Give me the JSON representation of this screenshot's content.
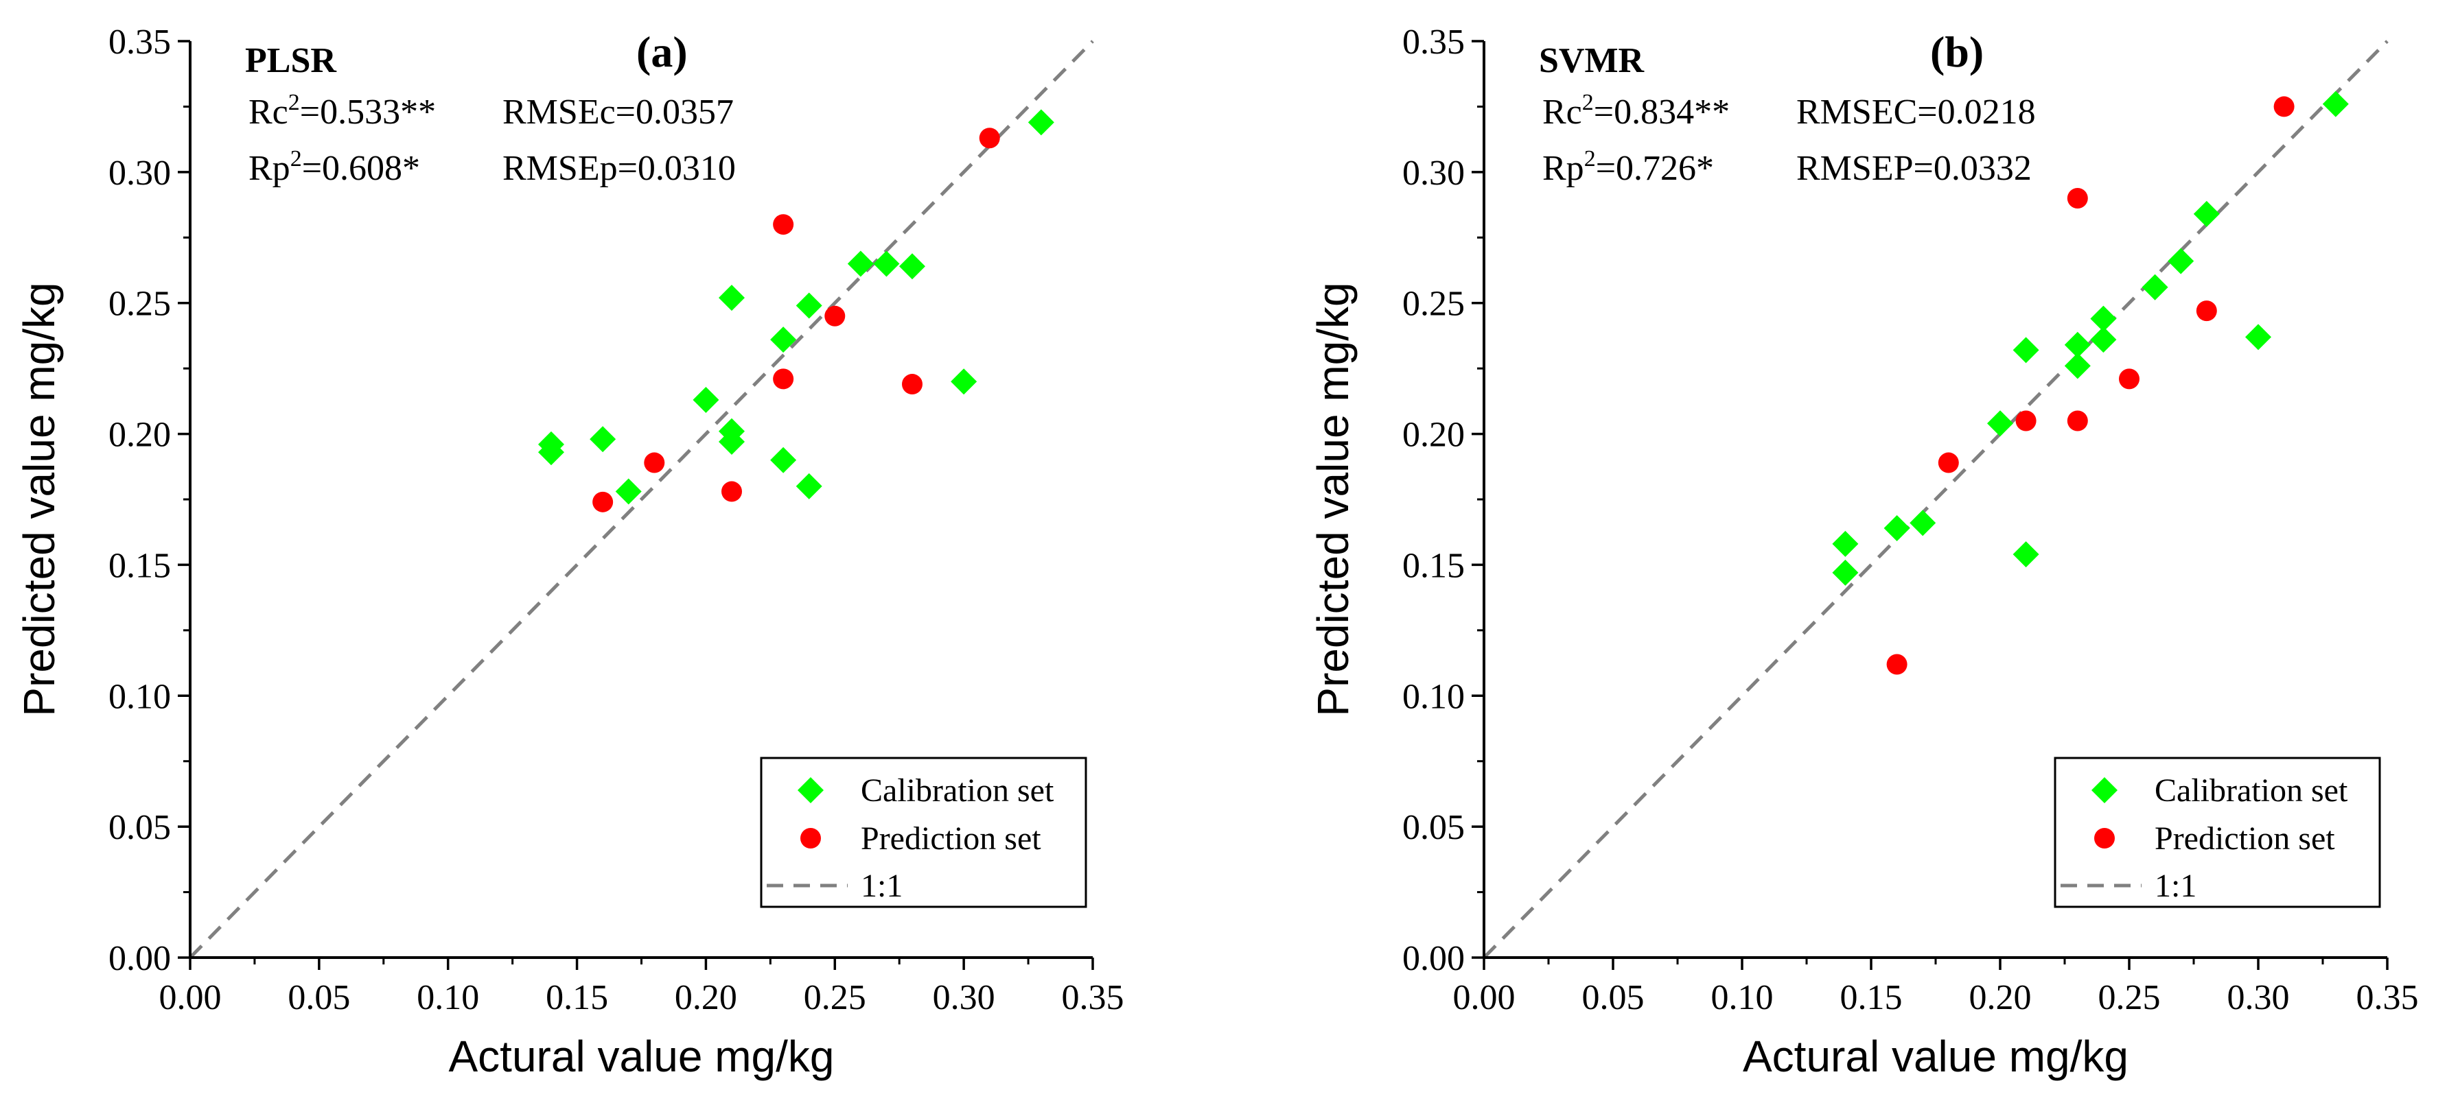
{
  "chart_data": [
    {
      "type": "scatter",
      "panel_label": "(a)",
      "method": "PLSR",
      "stats": {
        "rc_prefix": "Rc",
        "rc_value": "=0.533**",
        "rp_prefix": "Rp",
        "rp_value": "=0.608*",
        "rmse_c": "RMSEc=0.0357",
        "rmse_p": "RMSEp=0.0310",
        "superscript": "2"
      },
      "xlabel": "Actural value mg/kg",
      "ylabel": "Predicted value mg/kg",
      "xlim": [
        0,
        0.35
      ],
      "ylim": [
        0,
        0.35
      ],
      "xticks": [
        "0.00",
        "0.05",
        "0.10",
        "0.15",
        "0.20",
        "0.25",
        "0.30",
        "0.35"
      ],
      "yticks": [
        "0.00",
        "0.05",
        "0.10",
        "0.15",
        "0.20",
        "0.25",
        "0.30",
        "0.35"
      ],
      "legend": {
        "position": "bottom-right",
        "entries": [
          "Calibration set",
          "Prediction set",
          "1:1"
        ]
      },
      "series": [
        {
          "name": "Calibration set",
          "marker": "diamond",
          "color": "#00ff00",
          "points": [
            [
              0.14,
              0.196
            ],
            [
              0.14,
              0.193
            ],
            [
              0.16,
              0.198
            ],
            [
              0.17,
              0.178
            ],
            [
              0.2,
              0.213
            ],
            [
              0.21,
              0.252
            ],
            [
              0.21,
              0.201
            ],
            [
              0.21,
              0.197
            ],
            [
              0.23,
              0.236
            ],
            [
              0.23,
              0.19
            ],
            [
              0.24,
              0.249
            ],
            [
              0.24,
              0.18
            ],
            [
              0.26,
              0.265
            ],
            [
              0.27,
              0.265
            ],
            [
              0.28,
              0.264
            ],
            [
              0.3,
              0.22
            ],
            [
              0.33,
              0.319
            ]
          ]
        },
        {
          "name": "Prediction set",
          "marker": "circle",
          "color": "#ff0000",
          "points": [
            [
              0.16,
              0.174
            ],
            [
              0.18,
              0.189
            ],
            [
              0.21,
              0.178
            ],
            [
              0.23,
              0.28
            ],
            [
              0.23,
              0.221
            ],
            [
              0.25,
              0.245
            ],
            [
              0.28,
              0.219
            ],
            [
              0.31,
              0.313
            ]
          ]
        },
        {
          "name": "1:1",
          "marker": "dashed-line",
          "color": "#808080",
          "points": [
            [
              0,
              0
            ],
            [
              0.35,
              0.35
            ]
          ]
        }
      ]
    },
    {
      "type": "scatter",
      "panel_label": "(b)",
      "method": "SVMR",
      "stats": {
        "rc_prefix": "Rc",
        "rc_value": "=0.834**",
        "rp_prefix": "Rp",
        "rp_value": "=0.726*",
        "rmse_c": "RMSEC=0.0218",
        "rmse_p": "RMSEP=0.0332",
        "superscript": "2"
      },
      "xlabel": "Actural value mg/kg",
      "ylabel": "Predicted value mg/kg",
      "xlim": [
        0,
        0.35
      ],
      "ylim": [
        0,
        0.35
      ],
      "xticks": [
        "0.00",
        "0.05",
        "0.10",
        "0.15",
        "0.20",
        "0.25",
        "0.30",
        "0.35"
      ],
      "yticks": [
        "0.00",
        "0.05",
        "0.10",
        "0.15",
        "0.20",
        "0.25",
        "0.30",
        "0.35"
      ],
      "legend": {
        "position": "bottom-right",
        "entries": [
          "Calibration set",
          "Prediction set",
          "1:1"
        ]
      },
      "series": [
        {
          "name": "Calibration set",
          "marker": "diamond",
          "color": "#00ff00",
          "points": [
            [
              0.14,
              0.158
            ],
            [
              0.14,
              0.147
            ],
            [
              0.16,
              0.164
            ],
            [
              0.17,
              0.166
            ],
            [
              0.2,
              0.204
            ],
            [
              0.21,
              0.232
            ],
            [
              0.21,
              0.154
            ],
            [
              0.23,
              0.234
            ],
            [
              0.23,
              0.226
            ],
            [
              0.24,
              0.244
            ],
            [
              0.24,
              0.236
            ],
            [
              0.26,
              0.256
            ],
            [
              0.27,
              0.266
            ],
            [
              0.28,
              0.284
            ],
            [
              0.3,
              0.237
            ],
            [
              0.33,
              0.326
            ]
          ]
        },
        {
          "name": "Prediction set",
          "marker": "circle",
          "color": "#ff0000",
          "points": [
            [
              0.16,
              0.112
            ],
            [
              0.18,
              0.189
            ],
            [
              0.21,
              0.205
            ],
            [
              0.23,
              0.29
            ],
            [
              0.23,
              0.205
            ],
            [
              0.25,
              0.221
            ],
            [
              0.28,
              0.247
            ],
            [
              0.31,
              0.325
            ]
          ]
        },
        {
          "name": "1:1",
          "marker": "dashed-line",
          "color": "#808080",
          "points": [
            [
              0,
              0
            ],
            [
              0.35,
              0.35
            ]
          ]
        }
      ]
    }
  ]
}
